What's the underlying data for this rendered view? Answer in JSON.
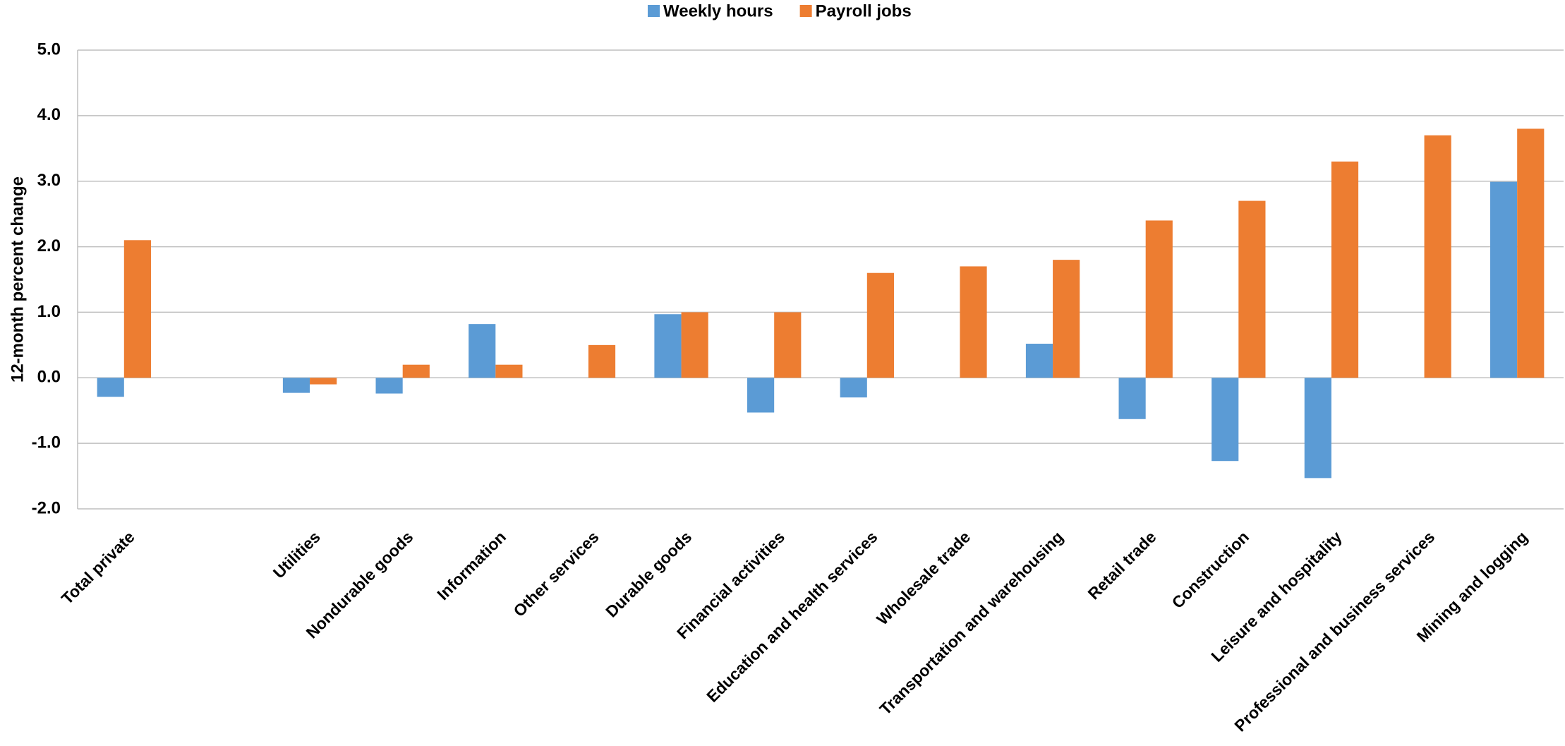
{
  "chart_data": {
    "type": "bar",
    "y_label": "12-month percent change",
    "categories": [
      "Total private",
      null,
      "Utilities",
      "Nondurable goods",
      "Information",
      "Other services",
      "Durable goods",
      "Financial activities",
      "Education and health services",
      "Wholesale trade",
      "Transportation and warehousing",
      "Retail trade",
      "Construction",
      "Leisure and hospitality",
      "Professional and business services",
      "Mining and logging"
    ],
    "series": [
      {
        "name": "Weekly hours",
        "color": "#5b9bd5",
        "values": [
          -0.29,
          null,
          -0.23,
          -0.24,
          0.82,
          null,
          0.97,
          -0.53,
          -0.3,
          null,
          0.52,
          -0.63,
          -1.27,
          -1.53,
          null,
          2.99
        ]
      },
      {
        "name": "Payroll jobs",
        "color": "#ed7d31",
        "values": [
          2.1,
          null,
          -0.1,
          0.2,
          0.2,
          0.5,
          1.0,
          1.0,
          1.6,
          1.7,
          1.8,
          2.4,
          2.7,
          3.3,
          3.7,
          3.8
        ]
      }
    ],
    "ylim": [
      -2,
      5
    ],
    "yticks": [
      {
        "value": -2,
        "label": "-2.0"
      },
      {
        "value": -1,
        "label": "-1.0"
      },
      {
        "value": 0,
        "label": "0.0"
      },
      {
        "value": 1,
        "label": "1.0"
      },
      {
        "value": 2,
        "label": "2.0"
      },
      {
        "value": 3,
        "label": "3.0"
      },
      {
        "value": 4,
        "label": "4.0"
      },
      {
        "value": 5,
        "label": "5.0"
      }
    ],
    "grid": true,
    "legend": "top"
  }
}
